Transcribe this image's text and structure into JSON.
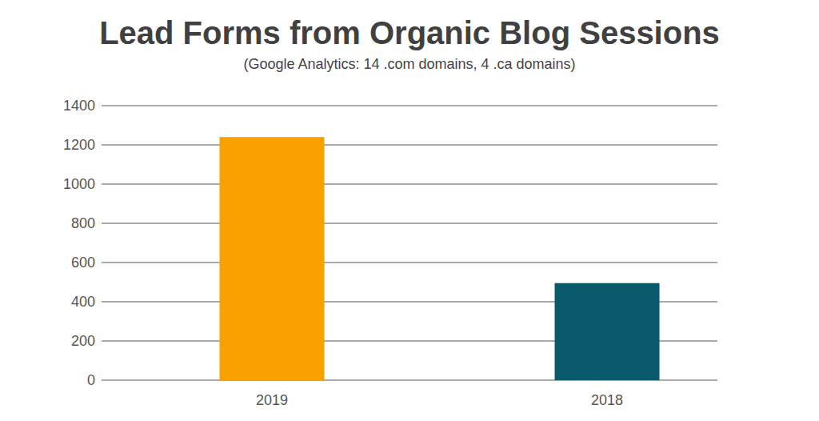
{
  "chart_data": {
    "type": "bar",
    "title": "Lead Forms from Organic Blog Sessions",
    "subtitle": "(Google Analytics: 14 .com domains, 4 .ca domains)",
    "categories": [
      "2019",
      "2018"
    ],
    "values": [
      1240,
      495
    ],
    "colors": [
      "#f9a100",
      "#0a5a6b"
    ],
    "ylim": [
      0,
      1400
    ],
    "yticks": [
      0,
      200,
      400,
      600,
      800,
      1000,
      1200,
      1400
    ],
    "grid": true
  }
}
